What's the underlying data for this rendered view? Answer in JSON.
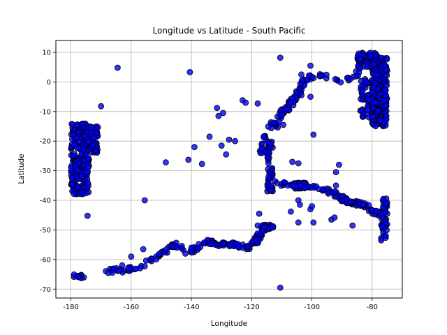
{
  "chart_data": {
    "type": "scatter",
    "title": "Longitude vs Latitude - South Pacific",
    "xlabel": "Longitude",
    "ylabel": "Latitude",
    "xlim": [
      -185,
      -70
    ],
    "ylim": [
      -73,
      14
    ],
    "xticks": [
      -180,
      -160,
      -140,
      -120,
      -100,
      -80
    ],
    "yticks": [
      -70,
      -60,
      -50,
      -40,
      -30,
      -20,
      -10,
      0,
      10
    ],
    "grid": true,
    "marker_color": "#0000ff",
    "marker_edge": "#000000",
    "marker_alpha": 0.8,
    "clusters": [
      {
        "x_range": [
          -180,
          -174
        ],
        "y_range": [
          -38,
          -14
        ],
        "count": 260
      },
      {
        "x_range": [
          -176,
          -171
        ],
        "y_range": [
          -24,
          -15
        ],
        "count": 80
      },
      {
        "x_range": [
          -80,
          -75
        ],
        "y_range": [
          -15,
          9
        ],
        "count": 220
      },
      {
        "x_range": [
          -85,
          -78
        ],
        "y_range": [
          5,
          10
        ],
        "count": 60
      },
      {
        "x_range": [
          -84,
          -78
        ],
        "y_range": [
          -12,
          1
        ],
        "count": 80
      },
      {
        "x_range": [
          -77,
          -75
        ],
        "y_range": [
          -53,
          -38
        ],
        "count": 40
      },
      {
        "x_range": [
          -115,
          -113
        ],
        "y_range": [
          -37,
          -20
        ],
        "count": 60
      },
      {
        "x_range": [
          -106,
          -102
        ],
        "y_range": [
          -36,
          -34
        ],
        "count": 40
      }
    ],
    "paths": [
      {
        "points": [
          [
            -113,
            -34
          ],
          [
            -105,
            -35
          ],
          [
            -97,
            -36
          ],
          [
            -92,
            -38
          ],
          [
            -89,
            -40
          ],
          [
            -85,
            -41
          ],
          [
            -82,
            -42
          ],
          [
            -79,
            -44
          ],
          [
            -76,
            -45
          ]
        ],
        "count": 110
      },
      {
        "points": [
          [
            -168,
            -64
          ],
          [
            -158,
            -63
          ],
          [
            -150,
            -58
          ],
          [
            -145,
            -55
          ],
          [
            -140,
            -57
          ],
          [
            -135,
            -54
          ],
          [
            -130,
            -55
          ],
          [
            -125,
            -55
          ],
          [
            -121,
            -56
          ],
          [
            -118,
            -53
          ],
          [
            -116,
            -49
          ],
          [
            -113,
            -49
          ]
        ],
        "count": 180
      },
      {
        "points": [
          [
            -110,
            -10
          ],
          [
            -106,
            -6
          ],
          [
            -104,
            -3
          ],
          [
            -103,
            0
          ],
          [
            -100,
            2
          ],
          [
            -95,
            2
          ],
          [
            -90,
            0
          ],
          [
            -86,
            2
          ],
          [
            -84,
            5
          ]
        ],
        "count": 60
      },
      {
        "points": [
          [
            -112,
            -16
          ],
          [
            -110,
            -10
          ],
          [
            -108,
            -9
          ],
          [
            -106,
            -6
          ]
        ],
        "count": 30
      },
      {
        "points": [
          [
            -117,
            -25
          ],
          [
            -116,
            -18
          ],
          [
            -112,
            -13
          ]
        ],
        "count": 20
      },
      {
        "points": [
          [
            -179,
            -65.7
          ],
          [
            -176,
            -66
          ]
        ],
        "count": 10
      }
    ],
    "points": [
      [
        -164.5,
        4.8
      ],
      [
        -140.5,
        3.3
      ],
      [
        -110.5,
        8.2
      ],
      [
        -100.5,
        5.5
      ],
      [
        -103.5,
        2.5
      ],
      [
        -97,
        2
      ],
      [
        -170,
        -8.2
      ],
      [
        -131.5,
        -8.8
      ],
      [
        -129.5,
        -10.5
      ],
      [
        -131,
        -11.5
      ],
      [
        -123,
        -6.2
      ],
      [
        -122,
        -7
      ],
      [
        -118,
        -7.3
      ],
      [
        -134,
        -18.5
      ],
      [
        -130,
        -21.5
      ],
      [
        -127.5,
        -19.5
      ],
      [
        -125.5,
        -20
      ],
      [
        -139,
        -22
      ],
      [
        -141,
        -26.3
      ],
      [
        -136.5,
        -27.7
      ],
      [
        -148.5,
        -27.2
      ],
      [
        -128.5,
        -24.5
      ],
      [
        -155.5,
        -40
      ],
      [
        -174.5,
        -45.2
      ],
      [
        -156,
        -56.5
      ],
      [
        -160,
        -59
      ],
      [
        -163,
        -62
      ],
      [
        -142,
        -58
      ],
      [
        -140,
        -56
      ],
      [
        -155.5,
        -62.3
      ],
      [
        -110.5,
        -69.5
      ],
      [
        -99.5,
        -17.8
      ],
      [
        -109.5,
        -14.5
      ],
      [
        -106.5,
        -27
      ],
      [
        -104.5,
        -27.5
      ],
      [
        -107,
        -43.8
      ],
      [
        -104.5,
        -47.5
      ],
      [
        -99.5,
        -47.5
      ],
      [
        -100.5,
        -43
      ],
      [
        -100,
        -42
      ],
      [
        -104.5,
        -40
      ],
      [
        -104,
        -41.5
      ],
      [
        -93.5,
        -46.5
      ],
      [
        -92.5,
        -45.8
      ],
      [
        -91,
        -28
      ],
      [
        -92,
        -30.5
      ],
      [
        -92,
        -35
      ],
      [
        -86.5,
        -48.5
      ],
      [
        -77,
        -53.5
      ],
      [
        -75.5,
        -52
      ],
      [
        -117.5,
        -44.5
      ],
      [
        -118,
        -48.5
      ],
      [
        -100.5,
        -5
      ],
      [
        -107,
        -7
      ],
      [
        -103.5,
        -4.5
      ],
      [
        -111,
        -13.5
      ],
      [
        -115.5,
        -23.5
      ]
    ]
  }
}
